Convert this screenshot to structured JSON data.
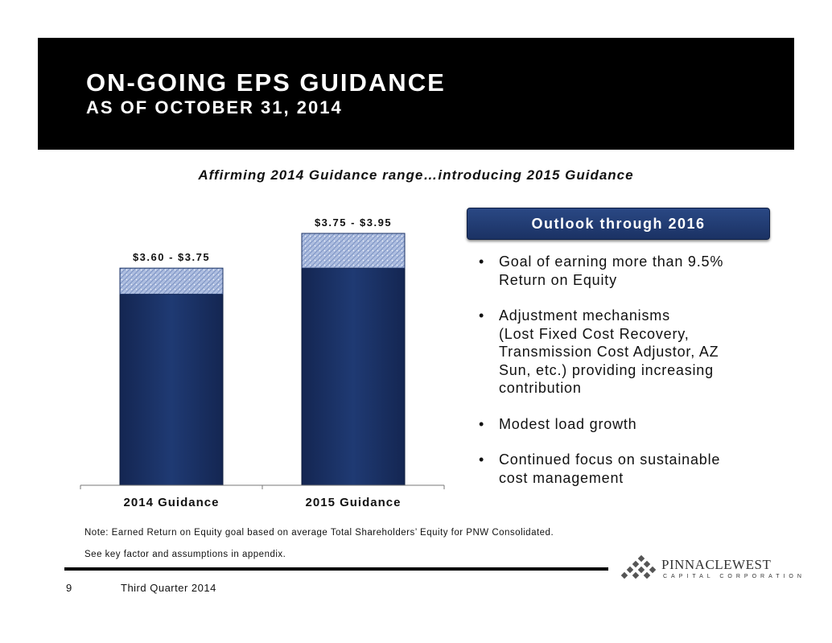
{
  "header": {
    "title": "ON-GOING EPS GUIDANCE",
    "subtitle": "AS OF OCTOBER 31, 2014"
  },
  "headline": "Affirming 2014 Guidance range…introducing 2015 Guidance",
  "chart_data": {
    "type": "bar",
    "stacked": true,
    "categories": [
      "2014 Guidance",
      "2015 Guidance"
    ],
    "range_labels": [
      "$3.60 - $3.75",
      "$3.75 - $3.95"
    ],
    "series": [
      {
        "values": [
          3.6,
          3.75
        ],
        "color": "#1b3264"
      },
      {
        "values": [
          0.15,
          0.2
        ],
        "color": "#aebee0",
        "pattern": "hatched"
      }
    ],
    "grid": false,
    "legend": false
  },
  "outlook": {
    "title": "Outlook through 2016",
    "bullets": [
      "Goal of earning more than 9.5%\nReturn on Equity",
      "Adjustment mechanisms\n(Lost Fixed Cost Recovery,\nTransmission Cost Adjustor, AZ\nSun, etc.) providing increasing\ncontribution",
      "Modest load growth",
      "Continued focus on sustainable\ncost management"
    ]
  },
  "notes": [
    "Note: Earned Return on Equity goal based on average Total Shareholders’ Equity for PNW Consolidated.",
    "See key factor and assumptions in appendix."
  ],
  "footer": {
    "page_number": "9",
    "period": "Third Quarter 2014"
  },
  "logo": {
    "name": "PINNACLEWEST",
    "tagline": "CAPITAL CORPORATION"
  },
  "colors": {
    "header_bg": "#000000",
    "bar_base": "#1b3264",
    "bar_range": "#aebee0",
    "outlook_box": "#1f3a73"
  }
}
